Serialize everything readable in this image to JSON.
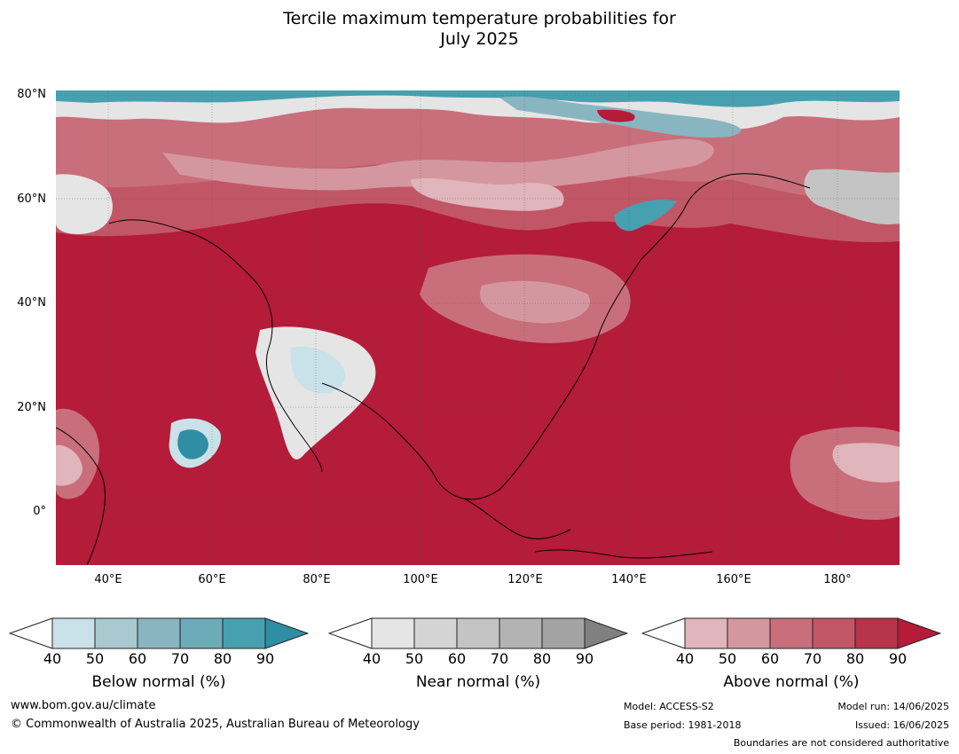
{
  "title_line1": "Tercile maximum temperature probabilities for",
  "title_line2": "July 2025",
  "latitude_labels": [
    "80°N",
    "60°N",
    "40°N",
    "20°N",
    "0°"
  ],
  "longitude_labels": [
    "40°E",
    "60°E",
    "80°E",
    "100°E",
    "120°E",
    "140°E",
    "160°E",
    "180°"
  ],
  "colorbars": [
    {
      "title": "Below normal (%)",
      "ticks": [
        "40",
        "50",
        "60",
        "70",
        "80",
        "90"
      ],
      "colors": [
        "#ffffff",
        "#c9e1e8",
        "#a7c9cf",
        "#89b5c0",
        "#6cacb8",
        "#47a0b0",
        "#2f8ea3"
      ]
    },
    {
      "title": "Near normal (%)",
      "ticks": [
        "40",
        "50",
        "60",
        "70",
        "80",
        "90"
      ],
      "colors": [
        "#ffffff",
        "#e5e5e5",
        "#d4d4d4",
        "#c4c4c4",
        "#b3b3b3",
        "#a3a3a3",
        "#808080"
      ]
    },
    {
      "title": "Above normal (%)",
      "ticks": [
        "40",
        "50",
        "60",
        "70",
        "80",
        "90"
      ],
      "colors": [
        "#ffffff",
        "#e0b5bb",
        "#d5979f",
        "#c86f7b",
        "#c15766",
        "#b83448",
        "#b41c39"
      ]
    }
  ],
  "footer": {
    "website": "www.bom.gov.au/climate",
    "copyright": "© Commonwealth of Australia 2025, Australian Bureau of Meteorology",
    "model": "Model: ACCESS-S2",
    "base_period": "Base period: 1981-2018",
    "model_run": "Model run: 14/06/2025",
    "issued": "Issued: 16/06/2025",
    "boundaries_note": "Boundaries are not considered authoritative"
  }
}
